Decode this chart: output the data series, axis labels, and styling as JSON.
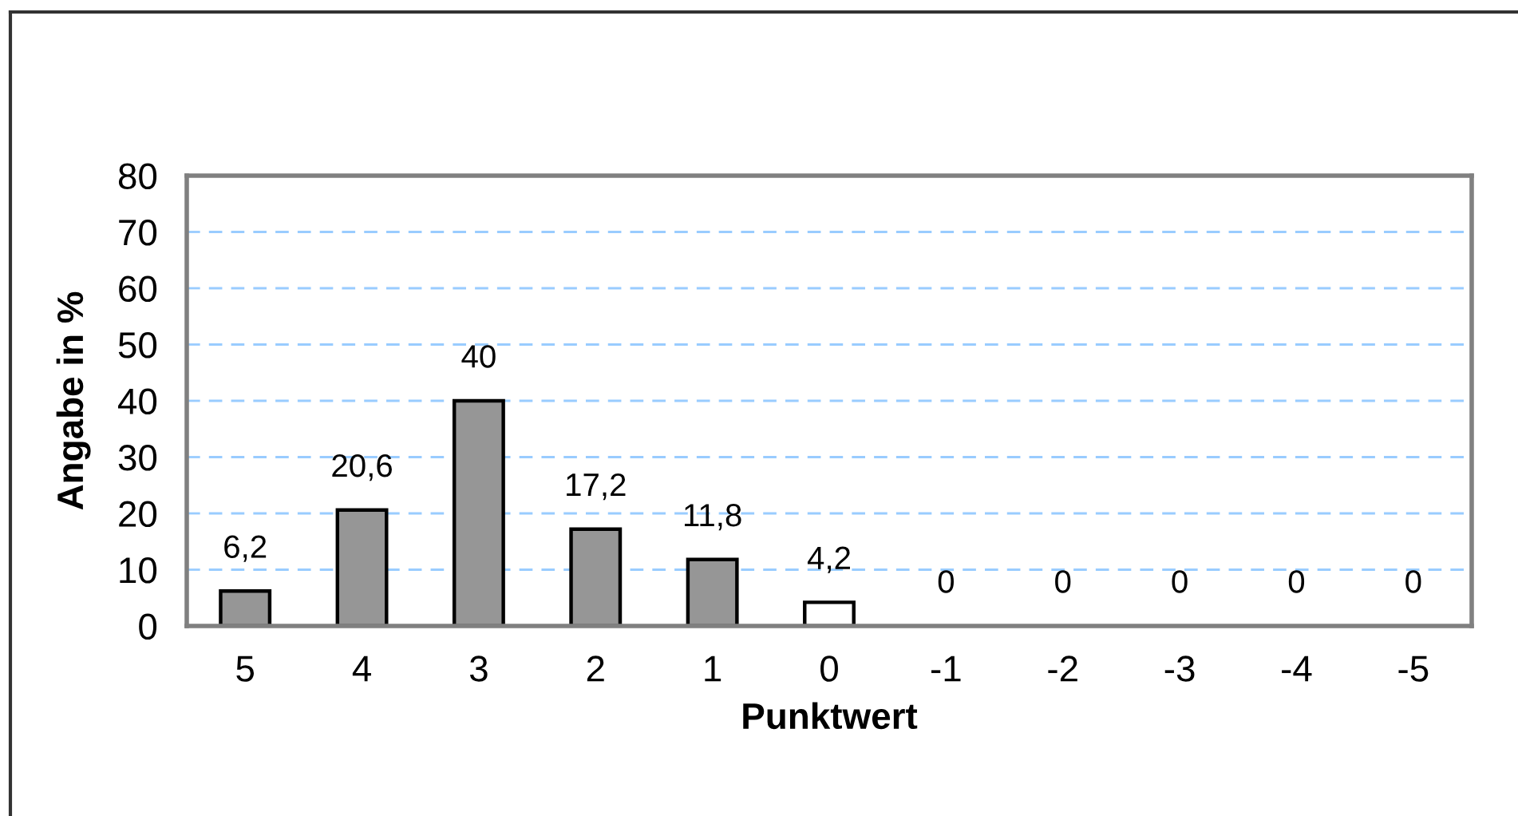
{
  "chart_data": {
    "type": "bar",
    "xlabel": "Punktwert",
    "ylabel": "Angabe in %",
    "categories": [
      "5",
      "4",
      "3",
      "2",
      "1",
      "0",
      "-1",
      "-2",
      "-3",
      "-4",
      "-5"
    ],
    "values": [
      6.2,
      20.6,
      40,
      17.2,
      11.8,
      4.2,
      0,
      0,
      0,
      0,
      0
    ],
    "colors": [
      "#969696",
      "#969696",
      "#969696",
      "#969696",
      "#969696",
      "#ffffff",
      "#ffffff",
      "#ffffff",
      "#ffffff",
      "#ffffff",
      "#ffffff"
    ],
    "value_labels": [
      "6,2",
      "20,6",
      "40",
      "17,2",
      "11,8",
      "4,2",
      "0",
      "0",
      "0",
      "0",
      "0"
    ],
    "ylim": [
      0,
      80
    ],
    "yticks": [
      0,
      10,
      20,
      30,
      40,
      50,
      60,
      70,
      80
    ],
    "grid": "y"
  }
}
